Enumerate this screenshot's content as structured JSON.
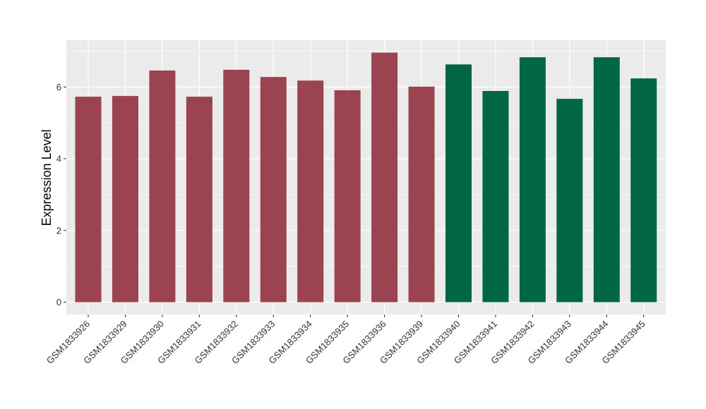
{
  "chart_data": {
    "type": "bar",
    "title": "",
    "xlabel": "",
    "ylabel": "Expression Level",
    "ylim": [
      0,
      7.3
    ],
    "yticks": [
      0,
      2,
      4,
      6
    ],
    "grid": true,
    "legend": "none",
    "categories": [
      "GSM1833926",
      "GSM1833929",
      "GSM1833930",
      "GSM1833931",
      "GSM1833932",
      "GSM1833933",
      "GSM1833934",
      "GSM1833935",
      "GSM1833936",
      "GSM1833939",
      "GSM1833940",
      "GSM1833941",
      "GSM1833942",
      "GSM1833943",
      "GSM1833944",
      "GSM1833945"
    ],
    "values": [
      5.73,
      5.75,
      6.46,
      5.73,
      6.48,
      6.28,
      6.18,
      5.91,
      6.96,
      6.01,
      6.63,
      5.89,
      6.83,
      5.67,
      6.83,
      6.24
    ],
    "groups": [
      0,
      0,
      0,
      0,
      0,
      0,
      0,
      0,
      0,
      0,
      1,
      1,
      1,
      1,
      1,
      1
    ],
    "group_colors": [
      "#9b4350",
      "#006644"
    ],
    "panel_background": "#ebebeb",
    "grid_color": "#ffffff"
  }
}
